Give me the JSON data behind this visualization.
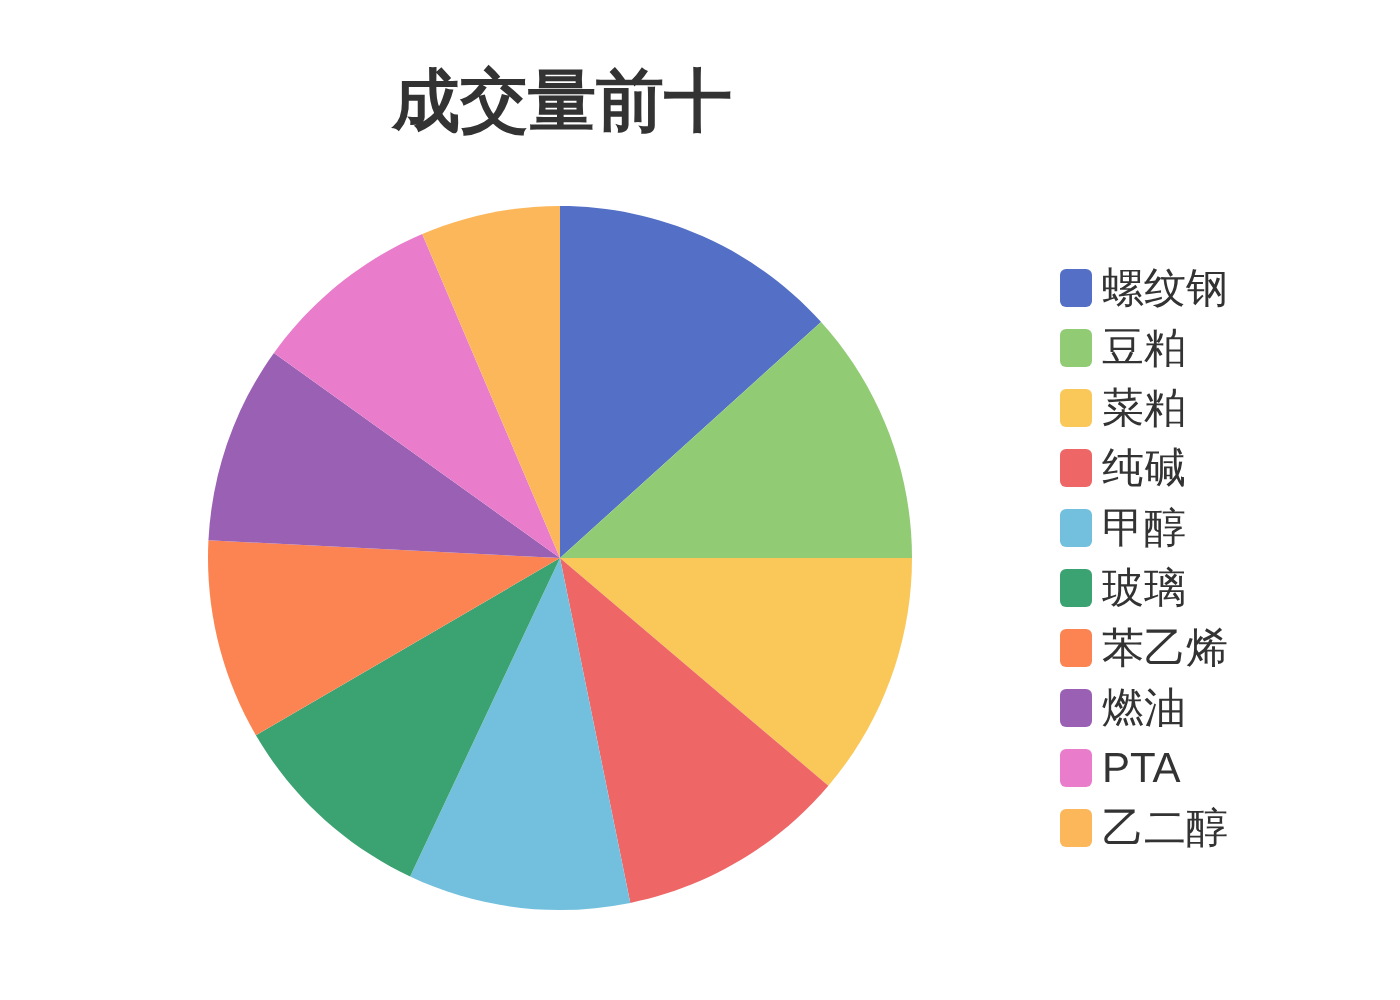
{
  "chart_data": {
    "type": "pie",
    "title": "成交量前十",
    "categories": [
      "螺纹钢",
      "豆粕",
      "菜粕",
      "纯碱",
      "甲醇",
      "玻璃",
      "苯乙烯",
      "燃油",
      "PTA",
      "乙二醇"
    ],
    "values": [
      13.3,
      11.7,
      11.2,
      10.6,
      10.2,
      9.6,
      9.2,
      9.1,
      8.7,
      6.4
    ],
    "colors": [
      "#5470c6",
      "#91cc75",
      "#fac858",
      "#ee6666",
      "#73c0de",
      "#3ba272",
      "#fc8452",
      "#9a60b4",
      "#ea7ccc",
      "#fcb75b"
    ],
    "legend": "right"
  }
}
